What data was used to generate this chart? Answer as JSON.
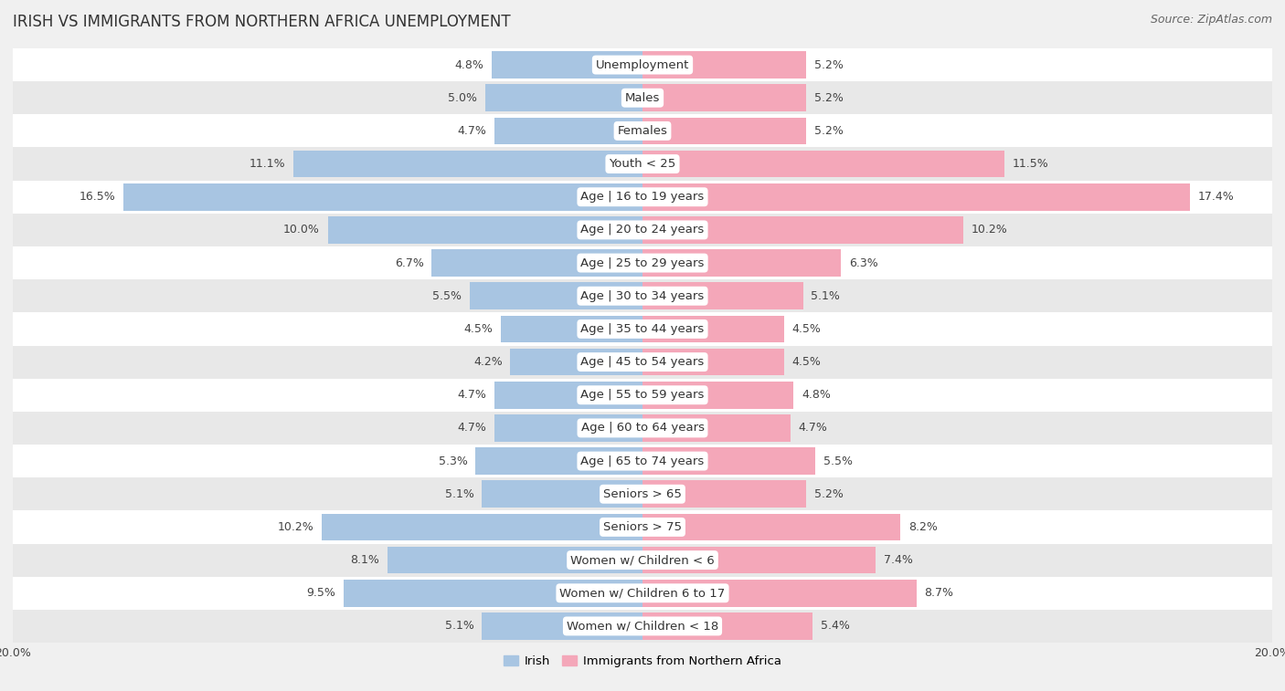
{
  "title": "IRISH VS IMMIGRANTS FROM NORTHERN AFRICA UNEMPLOYMENT",
  "source": "Source: ZipAtlas.com",
  "categories": [
    "Unemployment",
    "Males",
    "Females",
    "Youth < 25",
    "Age | 16 to 19 years",
    "Age | 20 to 24 years",
    "Age | 25 to 29 years",
    "Age | 30 to 34 years",
    "Age | 35 to 44 years",
    "Age | 45 to 54 years",
    "Age | 55 to 59 years",
    "Age | 60 to 64 years",
    "Age | 65 to 74 years",
    "Seniors > 65",
    "Seniors > 75",
    "Women w/ Children < 6",
    "Women w/ Children 6 to 17",
    "Women w/ Children < 18"
  ],
  "irish_values": [
    4.8,
    5.0,
    4.7,
    11.1,
    16.5,
    10.0,
    6.7,
    5.5,
    4.5,
    4.2,
    4.7,
    4.7,
    5.3,
    5.1,
    10.2,
    8.1,
    9.5,
    5.1
  ],
  "immigrant_values": [
    5.2,
    5.2,
    5.2,
    11.5,
    17.4,
    10.2,
    6.3,
    5.1,
    4.5,
    4.5,
    4.8,
    4.7,
    5.5,
    5.2,
    8.2,
    7.4,
    8.7,
    5.4
  ],
  "irish_color": "#a8c5e2",
  "immigrant_color": "#f4a7b9",
  "irish_label": "Irish",
  "immigrant_label": "Immigrants from Northern Africa",
  "max_value": 20.0,
  "bg_color": "#f0f0f0",
  "row_color_light": "#ffffff",
  "row_color_dark": "#e8e8e8",
  "title_fontsize": 12,
  "source_fontsize": 9,
  "label_fontsize": 9.5,
  "value_fontsize": 9
}
